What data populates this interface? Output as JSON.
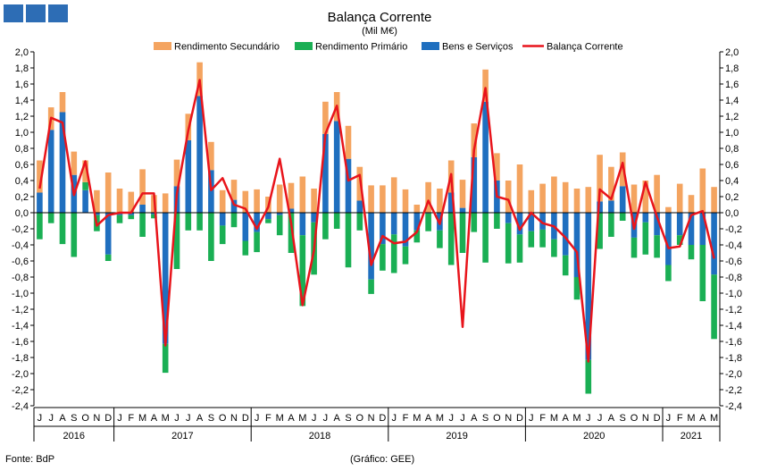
{
  "chart_data": {
    "type": "bar",
    "title": "Balança Corrente",
    "subtitle": "(Mil M€)",
    "ylim": [
      -2.4,
      2.0
    ],
    "y_ticks": [
      "2,0",
      "1,8",
      "1,6",
      "1,4",
      "1,2",
      "1,0",
      "0,8",
      "0,6",
      "0,4",
      "0,2",
      "0,0",
      "-0,2",
      "-0,4",
      "-0,6",
      "-0,8",
      "-1,0",
      "-1,2",
      "-1,4",
      "-1,6",
      "-1,8",
      "-2,0",
      "-2,2",
      "-2,4"
    ],
    "grid": false,
    "legend_position": "top",
    "colors": {
      "Rendimento Secundário": "#f4a460",
      "Rendimento Primário": "#1aaf54",
      "Bens e Serviços": "#1f6fbf",
      "Balança Corrente": "#e8141b"
    },
    "categories": [
      "J",
      "J",
      "A",
      "S",
      "O",
      "N",
      "D",
      "J",
      "F",
      "M",
      "A",
      "M",
      "J",
      "J",
      "A",
      "S",
      "O",
      "N",
      "D",
      "J",
      "F",
      "M",
      "A",
      "M",
      "J",
      "J",
      "A",
      "S",
      "O",
      "N",
      "D",
      "J",
      "F",
      "M",
      "A",
      "M",
      "J",
      "J",
      "A",
      "S",
      "O",
      "N",
      "D",
      "J",
      "F",
      "M",
      "A",
      "M",
      "J",
      "J",
      "A",
      "S",
      "O",
      "N",
      "D",
      "J",
      "F",
      "M",
      "A",
      "M"
    ],
    "years": [
      {
        "label": "2016",
        "start": 0,
        "end": 6
      },
      {
        "label": "2017",
        "start": 7,
        "end": 18
      },
      {
        "label": "2018",
        "start": 19,
        "end": 30
      },
      {
        "label": "2019",
        "start": 31,
        "end": 42
      },
      {
        "label": "2020",
        "start": 43,
        "end": 54
      },
      {
        "label": "2021",
        "start": 55,
        "end": 59
      }
    ],
    "series": [
      {
        "name": "Rendimento Secundário",
        "type": "bar",
        "values": [
          0.4,
          0.28,
          0.25,
          0.29,
          0.27,
          0.28,
          0.5,
          0.3,
          0.26,
          0.44,
          0.22,
          0.24,
          0.33,
          0.33,
          0.42,
          0.35,
          0.28,
          0.25,
          0.27,
          0.29,
          0.2,
          0.35,
          0.32,
          0.45,
          0.3,
          0.4,
          0.36,
          0.41,
          0.42,
          0.34,
          0.34,
          0.44,
          0.29,
          0.1,
          0.38,
          0.3,
          0.4,
          0.35,
          0.42,
          0.4,
          0.34,
          0.4,
          0.6,
          0.28,
          0.36,
          0.45,
          0.38,
          0.3,
          0.32,
          0.58,
          0.42,
          0.42,
          0.35,
          0.4,
          0.47,
          0.07,
          0.36,
          0.22,
          0.55,
          0.32
        ]
      },
      {
        "name": "Rendimento Primário",
        "type": "bar",
        "values": [
          -0.33,
          -0.13,
          -0.39,
          -0.55,
          0.1,
          -0.2,
          -0.08,
          -0.1,
          -0.05,
          -0.3,
          -0.05,
          -0.36,
          -0.7,
          -0.22,
          -0.22,
          -0.6,
          -0.23,
          -0.18,
          -0.18,
          -0.25,
          -0.05,
          -0.25,
          -0.5,
          -0.88,
          -0.65,
          -0.33,
          -0.2,
          -0.68,
          -0.22,
          -0.18,
          -0.33,
          -0.48,
          -0.22,
          -0.15,
          -0.22,
          -0.22,
          -0.65,
          -0.5,
          -0.24,
          -0.62,
          -0.2,
          -0.5,
          -0.35,
          -0.2,
          -0.22,
          -0.22,
          -0.25,
          -0.28,
          -0.42,
          -0.45,
          -0.3,
          -0.1,
          -0.25,
          -0.4,
          -0.28,
          -0.2,
          -0.12,
          -0.18,
          -0.7,
          -0.8
        ]
      },
      {
        "name": "Bens e Serviços",
        "type": "bar",
        "values": [
          0.25,
          1.03,
          1.25,
          0.47,
          0.28,
          -0.03,
          -0.52,
          -0.03,
          -0.03,
          0.1,
          -0.02,
          -1.63,
          0.33,
          0.9,
          1.45,
          0.53,
          -0.16,
          0.16,
          -0.35,
          -0.24,
          -0.08,
          -0.03,
          0.05,
          -0.28,
          -0.12,
          0.98,
          1.14,
          0.67,
          0.15,
          -0.83,
          -0.39,
          -0.27,
          -0.42,
          -0.22,
          -0.01,
          -0.22,
          0.25,
          0.06,
          0.69,
          1.38,
          0.4,
          -0.13,
          -0.27,
          -0.23,
          -0.21,
          -0.33,
          -0.53,
          -0.8,
          -1.83,
          0.14,
          0.15,
          0.33,
          -0.31,
          -0.12,
          -0.28,
          -0.65,
          -0.28,
          -0.4,
          -0.4,
          -0.77
        ]
      },
      {
        "name": "Balança Corrente",
        "type": "line",
        "values": [
          0.3,
          1.18,
          1.12,
          0.22,
          0.64,
          -0.16,
          -0.03,
          0.0,
          0.0,
          0.24,
          0.24,
          -1.65,
          0.23,
          1.02,
          1.65,
          0.28,
          0.43,
          0.1,
          0.05,
          -0.2,
          0.07,
          0.67,
          -0.13,
          -1.15,
          -0.47,
          0.98,
          1.33,
          0.4,
          0.47,
          -0.65,
          -0.29,
          -0.38,
          -0.36,
          -0.24,
          0.15,
          -0.14,
          0.48,
          -1.42,
          0.78,
          1.55,
          0.2,
          0.16,
          -0.21,
          0.0,
          -0.13,
          -0.17,
          -0.31,
          -0.49,
          -1.85,
          0.29,
          0.17,
          0.62,
          -0.2,
          0.38,
          -0.05,
          -0.44,
          -0.42,
          -0.03,
          0.02,
          -0.57
        ]
      }
    ]
  },
  "footer": {
    "source": "Fonte: BdP",
    "credit": "(Gráfico: GEE)"
  }
}
